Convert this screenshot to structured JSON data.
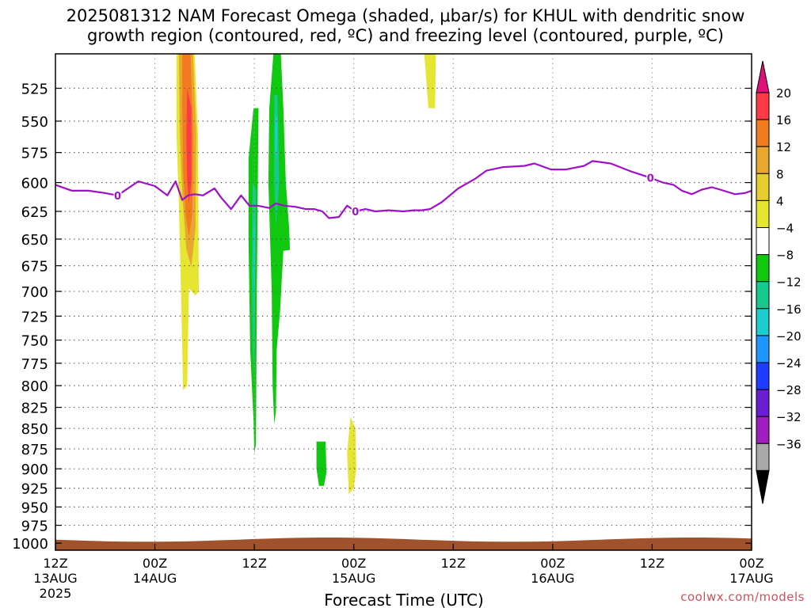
{
  "title_line1": "2025081312 NAM Forecast Omega (shaded, μbar/s) for KHUL with dendritic snow",
  "title_line2": "growth region (contoured, red, ºC) and freezing level (contoured, purple, ºC)",
  "credit": "coolwx.com/models",
  "chart_data": {
    "type": "heatmap",
    "title": "2025081312 NAM Forecast Omega (shaded, μbar/s) for KHUL with dendritic snow growth region (contoured, red, ºC) and freezing level (contoured, purple, ºC)",
    "xlabel": "Forecast Time (UTC)",
    "ylabel": "",
    "xlim": [
      0,
      84
    ],
    "ylim_hpa": [
      1010,
      500
    ],
    "y_ticks": [
      525,
      550,
      575,
      600,
      625,
      650,
      675,
      700,
      725,
      750,
      775,
      800,
      825,
      850,
      875,
      900,
      925,
      950,
      975,
      1000
    ],
    "x_ticks": [
      {
        "hour": 0,
        "lines": [
          "12Z",
          "13AUG",
          "2025"
        ]
      },
      {
        "hour": 12,
        "lines": [
          "00Z",
          "14AUG"
        ]
      },
      {
        "hour": 24,
        "lines": [
          "12Z"
        ]
      },
      {
        "hour": 36,
        "lines": [
          "00Z",
          "15AUG"
        ]
      },
      {
        "hour": 48,
        "lines": [
          "12Z"
        ]
      },
      {
        "hour": 60,
        "lines": [
          "00Z",
          "16AUG"
        ]
      },
      {
        "hour": 72,
        "lines": [
          "12Z"
        ]
      },
      {
        "hour": 84,
        "lines": [
          "00Z",
          "17AUG"
        ]
      }
    ],
    "grid": true,
    "colorbar": {
      "labels": [
        "20",
        "16",
        "12",
        "8",
        "4",
        "−4",
        "−8",
        "−12",
        "−16",
        "−20",
        "−24",
        "−28",
        "−32",
        "−36"
      ],
      "colors_top_to_bottom": [
        "#ff3a46",
        "#f27b22",
        "#e8a830",
        "#e6cc2e",
        "#e6e632",
        "#ffffff",
        "#11c811",
        "#17c98c",
        "#1ecdcd",
        "#1e96ff",
        "#1e3cff",
        "#6a1ed2",
        "#a01ebe",
        "#a9a9a9"
      ],
      "top_arrow_color": "#e0107a",
      "bottom_arrow_color": "#000000"
    },
    "freezing_level": {
      "name": "0 ºC freezing level",
      "color": "#a010c8",
      "contour_label": "0",
      "hours": [
        0,
        2,
        4,
        6,
        7.5,
        10,
        12,
        13.5,
        14.5,
        15.3,
        16,
        16.8,
        17.8,
        19.2,
        20,
        21.2,
        22.4,
        23.4,
        24.4,
        25.8,
        26.6,
        27.6,
        29,
        30.2,
        31.2,
        32.2,
        33,
        34.2,
        35.2,
        36.2,
        37.4,
        38.6,
        40.2,
        42,
        43.2,
        44.2,
        45.2,
        46.6,
        48.6,
        50.6,
        52,
        54,
        56.6,
        57.8,
        59.8,
        61.6,
        63.8,
        64.8,
        67,
        69.6,
        71.8,
        73.3,
        74.6,
        75.6,
        76.8,
        78,
        79.2,
        80.2,
        82,
        83.2,
        84
      ],
      "pressure_hpa": [
        602,
        607,
        607,
        609,
        611,
        599,
        603,
        611,
        599,
        615,
        611,
        610,
        611,
        605,
        613,
        623,
        611,
        620,
        620,
        622,
        618,
        620,
        621,
        623,
        623,
        625,
        631,
        630,
        620,
        625,
        623,
        625,
        624,
        625,
        624,
        624,
        623,
        617,
        605,
        597,
        590,
        587,
        586,
        584,
        589,
        589,
        586,
        582,
        584,
        591,
        596,
        600,
        602,
        607,
        610,
        606,
        604,
        606,
        610,
        609,
        607
      ],
      "label_hours": [
        7.5,
        36.2,
        71.8
      ]
    },
    "omega_regions": [
      {
        "name": "ascent core 14AUG",
        "hours": [
          14.5,
          17
        ],
        "pressure_hpa": [
          500,
          805
        ],
        "max_value": 16
      },
      {
        "name": "ascent band near 12Z 14AUG",
        "hours": [
          23.3,
          24.5
        ],
        "pressure_hpa": [
          540,
          880
        ],
        "min_value": -12
      },
      {
        "name": "ascent band after 12Z 14AUG",
        "hours": [
          25.2,
          27.8
        ],
        "pressure_hpa": [
          500,
          845
        ],
        "min_value": -12
      },
      {
        "name": "upper band 15AUG",
        "hours": [
          44.5,
          46
        ],
        "pressure_hpa": [
          500,
          540
        ],
        "max_value": 8
      },
      {
        "name": "low-level pocket 15AUG (green)",
        "hours": [
          31.5,
          32.7
        ],
        "pressure_hpa": [
          866,
          922
        ],
        "min_value": -8
      },
      {
        "name": "low-level pocket 15AUG (yellow)",
        "hours": [
          34.7,
          36.2
        ],
        "pressure_hpa": [
          836,
          933
        ],
        "max_value": 8
      }
    ],
    "terrain": {
      "color": "#a0522d",
      "top_pressure_hpa_range": [
        992,
        998
      ]
    }
  }
}
